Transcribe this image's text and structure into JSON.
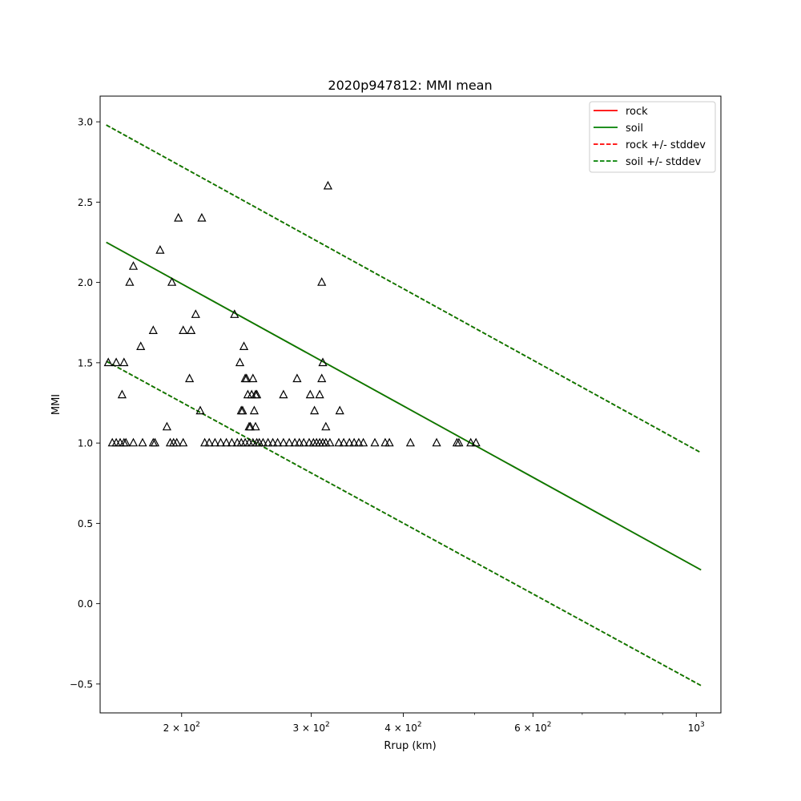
{
  "chart_data": {
    "type": "scatter",
    "title": "2020p947812: MMI mean",
    "xlabel": "Rrup (km)",
    "ylabel": "MMI",
    "xscale": "log",
    "xlim": [
      155,
      1080
    ],
    "ylim": [
      -0.68,
      3.16
    ],
    "grid": false,
    "legend_position": "top-right",
    "x_ticks": [
      {
        "value": 200,
        "base": "2 × 10",
        "exp": "2"
      },
      {
        "value": 300,
        "base": "3 × 10",
        "exp": "2"
      },
      {
        "value": 400,
        "base": "4 × 10",
        "exp": "2"
      },
      {
        "value": 600,
        "base": "6 × 10",
        "exp": "2"
      },
      {
        "value": 1000,
        "base": "10",
        "exp": "3"
      }
    ],
    "x_minor_ticks": [
      500,
      700,
      800,
      900
    ],
    "y_ticks": [
      {
        "value": -0.5,
        "label": "−0.5"
      },
      {
        "value": 0.0,
        "label": "0.0"
      },
      {
        "value": 0.5,
        "label": "0.5"
      },
      {
        "value": 1.0,
        "label": "1.0"
      },
      {
        "value": 1.5,
        "label": "1.5"
      },
      {
        "value": 2.0,
        "label": "2.0"
      },
      {
        "value": 2.5,
        "label": "2.5"
      },
      {
        "value": 3.0,
        "label": "3.0"
      }
    ],
    "series": [
      {
        "name": "rock",
        "style": "solid",
        "color": "#ff0000",
        "x": [
          158,
          1015
        ],
        "y": [
          2.25,
          0.21
        ]
      },
      {
        "name": "soil",
        "style": "solid",
        "color": "#008000",
        "x": [
          158,
          1015
        ],
        "y": [
          2.25,
          0.21
        ]
      },
      {
        "name": "rock +/- stddev",
        "style": "dashed",
        "color": "#ff0000",
        "x": [
          158,
          1015
        ],
        "y_upper": [
          2.98,
          0.94
        ],
        "y_lower": [
          1.51,
          -0.51
        ]
      },
      {
        "name": "soil +/- stddev",
        "style": "dashed",
        "color": "#008000",
        "x": [
          158,
          1015
        ],
        "y_upper": [
          2.98,
          0.94
        ],
        "y_lower": [
          1.51,
          -0.51
        ]
      }
    ],
    "observations": {
      "marker": "triangle",
      "color": "#000000",
      "points": [
        [
          159,
          1.5
        ],
        [
          163,
          1.5
        ],
        [
          167,
          1.5
        ],
        [
          166,
          1.3
        ],
        [
          170,
          2.0
        ],
        [
          172,
          2.1
        ],
        [
          176,
          1.6
        ],
        [
          183,
          1.7
        ],
        [
          187,
          2.2
        ],
        [
          191,
          1.1
        ],
        [
          194,
          2.0
        ],
        [
          198,
          2.4
        ],
        [
          201,
          1.7
        ],
        [
          205,
          1.4
        ],
        [
          206,
          1.7
        ],
        [
          209,
          1.8
        ],
        [
          212,
          1.2
        ],
        [
          213,
          2.4
        ],
        [
          236,
          1.8
        ],
        [
          240,
          1.5
        ],
        [
          241,
          1.2
        ],
        [
          242,
          1.2
        ],
        [
          243,
          1.6
        ],
        [
          244,
          1.4
        ],
        [
          245,
          1.4
        ],
        [
          246,
          1.3
        ],
        [
          247,
          1.1
        ],
        [
          248,
          1.1
        ],
        [
          249,
          1.3
        ],
        [
          250,
          1.4
        ],
        [
          251,
          1.2
        ],
        [
          252,
          1.3
        ],
        [
          252,
          1.1
        ],
        [
          253,
          1.3
        ],
        [
          275,
          1.3
        ],
        [
          287,
          1.4
        ],
        [
          299,
          1.3
        ],
        [
          303,
          1.2
        ],
        [
          308,
          1.3
        ],
        [
          310,
          2.0
        ],
        [
          310,
          1.4
        ],
        [
          311,
          1.5
        ],
        [
          314,
          1.1
        ],
        [
          316,
          2.6
        ],
        [
          328,
          1.2
        ],
        [
          161,
          1.0
        ],
        [
          163,
          1.0
        ],
        [
          165,
          1.0
        ],
        [
          167,
          1.0
        ],
        [
          168,
          1.0
        ],
        [
          172,
          1.0
        ],
        [
          177,
          1.0
        ],
        [
          183,
          1.0
        ],
        [
          184,
          1.0
        ],
        [
          193,
          1.0
        ],
        [
          195,
          1.0
        ],
        [
          197,
          1.0
        ],
        [
          201,
          1.0
        ],
        [
          215,
          1.0
        ],
        [
          218,
          1.0
        ],
        [
          222,
          1.0
        ],
        [
          226,
          1.0
        ],
        [
          230,
          1.0
        ],
        [
          234,
          1.0
        ],
        [
          238,
          1.0
        ],
        [
          241,
          1.0
        ],
        [
          244,
          1.0
        ],
        [
          247,
          1.0
        ],
        [
          250,
          1.0
        ],
        [
          253,
          1.0
        ],
        [
          255,
          1.0
        ],
        [
          258,
          1.0
        ],
        [
          262,
          1.0
        ],
        [
          266,
          1.0
        ],
        [
          270,
          1.0
        ],
        [
          275,
          1.0
        ],
        [
          280,
          1.0
        ],
        [
          285,
          1.0
        ],
        [
          289,
          1.0
        ],
        [
          293,
          1.0
        ],
        [
          298,
          1.0
        ],
        [
          302,
          1.0
        ],
        [
          305,
          1.0
        ],
        [
          308,
          1.0
        ],
        [
          311,
          1.0
        ],
        [
          314,
          1.0
        ],
        [
          318,
          1.0
        ],
        [
          327,
          1.0
        ],
        [
          332,
          1.0
        ],
        [
          338,
          1.0
        ],
        [
          343,
          1.0
        ],
        [
          348,
          1.0
        ],
        [
          353,
          1.0
        ],
        [
          366,
          1.0
        ],
        [
          378,
          1.0
        ],
        [
          383,
          1.0
        ],
        [
          409,
          1.0
        ],
        [
          444,
          1.0
        ],
        [
          473,
          1.0
        ],
        [
          476,
          1.0
        ],
        [
          494,
          1.0
        ],
        [
          502,
          1.0
        ]
      ]
    },
    "legend": [
      {
        "label": "rock",
        "color": "#ff0000",
        "style": "solid"
      },
      {
        "label": "soil",
        "color": "#008000",
        "style": "solid"
      },
      {
        "label": "rock +/- stddev",
        "color": "#ff0000",
        "style": "dashed"
      },
      {
        "label": "soil +/- stddev",
        "color": "#008000",
        "style": "dashed"
      }
    ]
  }
}
